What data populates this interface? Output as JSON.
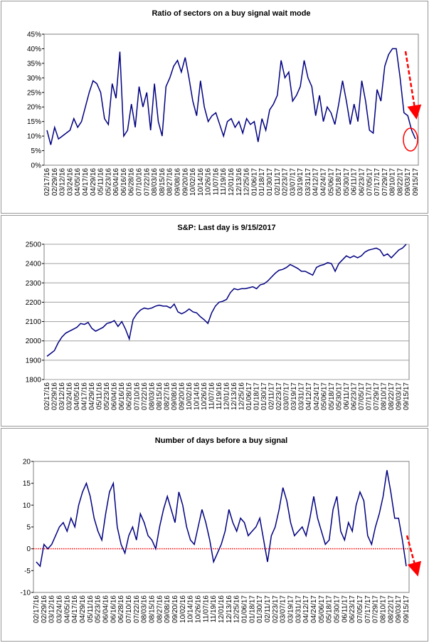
{
  "chart_data": [
    {
      "type": "line",
      "title": "Ratio of sectors on a buy signal wait mode",
      "color": "#000080",
      "grid": false,
      "categories": [
        "02/17/16",
        null,
        "02/29/16",
        null,
        "03/12/16",
        null,
        "03/24/16",
        null,
        "04/05/16",
        null,
        "04/17/16",
        null,
        "04/29/16",
        null,
        "05/11/16",
        null,
        "05/23/16",
        null,
        "06/04/16",
        null,
        "06/16/16",
        null,
        "06/28/16",
        null,
        "07/10/16",
        null,
        "07/22/16",
        null,
        "08/03/16",
        null,
        "08/15/16",
        null,
        "08/27/16",
        null,
        "09/08/16",
        null,
        "09/20/16",
        null,
        "10/02/16",
        null,
        "10/14/16",
        null,
        "10/26/16",
        null,
        "11/07/16",
        null,
        "11/19/16",
        null,
        "12/01/16",
        null,
        "12/13/16",
        null,
        "12/25/16",
        null,
        "01/06/17",
        null,
        "01/18/17",
        null,
        "01/30/17",
        null,
        "02/11/17",
        null,
        "02/23/17",
        null,
        "03/07/17",
        null,
        "03/19/17",
        null,
        "03/31/17",
        null,
        "04/12/17",
        null,
        "04/24/17",
        null,
        "05/06/17",
        null,
        "05/18/17",
        null,
        "05/30/17",
        null,
        "06/11/17",
        null,
        "06/23/17",
        null,
        "07/05/17",
        null,
        "07/17/17",
        null,
        "07/29/17",
        null,
        "08/10/17",
        null,
        "08/22/17",
        null,
        "09/03/17",
        null,
        "09/15/17"
      ],
      "values": [
        12,
        7,
        13,
        9,
        10,
        11,
        12,
        16,
        13,
        15,
        20,
        25,
        29,
        28,
        25,
        16,
        14,
        28,
        23,
        39,
        10,
        12,
        21,
        13,
        27,
        20,
        25,
        12,
        28,
        15,
        10,
        27,
        30,
        34,
        36,
        32,
        37,
        30,
        22,
        17,
        29,
        20,
        15,
        17,
        18,
        14,
        10,
        15,
        16,
        13,
        15,
        11,
        16,
        14,
        15,
        8,
        16,
        12,
        19,
        21,
        24,
        36,
        30,
        32,
        22,
        24,
        27,
        36,
        30,
        27,
        17,
        24,
        15,
        20,
        18,
        14,
        21,
        29,
        22,
        14,
        21,
        15,
        29,
        22,
        12,
        11,
        26,
        22,
        34,
        38,
        40,
        40,
        30,
        18,
        17,
        12,
        9
      ],
      "ylim": [
        0,
        45
      ],
      "yticks": [
        {
          "value": 0,
          "label": "0%"
        },
        {
          "value": 5,
          "label": "5%"
        },
        {
          "value": 10,
          "label": "10%"
        },
        {
          "value": 15,
          "label": "15%"
        },
        {
          "value": 20,
          "label": "20%"
        },
        {
          "value": 25,
          "label": "25%"
        },
        {
          "value": 30,
          "label": "30%"
        },
        {
          "value": 35,
          "label": "35%"
        },
        {
          "value": 40,
          "label": "40%"
        },
        {
          "value": 45,
          "label": "45%"
        }
      ]
    },
    {
      "type": "line",
      "title": "S&P: Last day is 9/15/2017",
      "color": "#000080",
      "grid": true,
      "categories": [
        "02/17/16",
        null,
        "02/29/16",
        null,
        "03/12/16",
        null,
        "03/24/16",
        null,
        "04/05/16",
        null,
        "04/17/16",
        null,
        "04/29/16",
        null,
        "05/11/16",
        null,
        "05/23/16",
        null,
        "06/04/16",
        null,
        "06/16/16",
        null,
        "06/28/16",
        null,
        "07/10/16",
        null,
        "07/22/16",
        null,
        "08/03/16",
        null,
        "08/15/16",
        null,
        "08/27/16",
        null,
        "09/08/16",
        null,
        "09/20/16",
        null,
        "10/02/16",
        null,
        "10/14/16",
        null,
        "10/26/16",
        null,
        "11/07/16",
        null,
        "11/19/16",
        null,
        "12/01/16",
        null,
        "12/13/16",
        null,
        "12/25/16",
        null,
        "01/06/17",
        null,
        "01/18/17",
        null,
        "01/30/17",
        null,
        "02/11/17",
        null,
        "02/23/17",
        null,
        "03/07/17",
        null,
        "03/19/17",
        null,
        "03/31/17",
        null,
        "04/12/17",
        null,
        "04/24/17",
        null,
        "05/06/17",
        null,
        "05/18/17",
        null,
        "05/30/17",
        null,
        "06/11/17",
        null,
        "06/23/17",
        null,
        "07/05/17",
        null,
        "07/17/17",
        null,
        "07/29/17",
        null,
        "08/10/17",
        null,
        "08/22/17",
        null,
        "09/03/17",
        null,
        "09/15/17"
      ],
      "values": [
        1920,
        1935,
        1950,
        1990,
        2020,
        2040,
        2050,
        2060,
        2070,
        2090,
        2085,
        2095,
        2065,
        2050,
        2060,
        2070,
        2090,
        2095,
        2105,
        2075,
        2100,
        2060,
        2010,
        2110,
        2140,
        2160,
        2170,
        2165,
        2170,
        2180,
        2185,
        2180,
        2180,
        2170,
        2190,
        2150,
        2140,
        2150,
        2165,
        2150,
        2145,
        2125,
        2110,
        2090,
        2145,
        2180,
        2200,
        2205,
        2215,
        2250,
        2270,
        2265,
        2270,
        2270,
        2275,
        2280,
        2270,
        2290,
        2295,
        2310,
        2330,
        2350,
        2365,
        2370,
        2380,
        2395,
        2385,
        2375,
        2360,
        2360,
        2350,
        2340,
        2380,
        2390,
        2395,
        2405,
        2400,
        2360,
        2400,
        2420,
        2440,
        2430,
        2440,
        2430,
        2440,
        2460,
        2470,
        2475,
        2480,
        2470,
        2440,
        2450,
        2430,
        2450,
        2470,
        2480,
        2500
      ],
      "ylim": [
        1800,
        2500
      ],
      "yticks": [
        1800,
        1900,
        2000,
        2100,
        2200,
        2300,
        2400,
        2500
      ]
    },
    {
      "type": "line",
      "title": "Number of days before a buy signal",
      "color": "#000080",
      "grid": false,
      "reference_line": {
        "value": 0,
        "color": "#ff0000"
      },
      "categories": [
        "02/17/16",
        null,
        "02/29/16",
        null,
        "03/12/16",
        null,
        "03/24/16",
        null,
        "04/05/16",
        null,
        "04/17/16",
        null,
        "04/29/16",
        null,
        "05/11/16",
        null,
        "05/23/16",
        null,
        "06/04/16",
        null,
        "06/16/16",
        null,
        "06/28/16",
        null,
        "07/10/16",
        null,
        "07/22/16",
        null,
        "08/03/16",
        null,
        "08/15/16",
        null,
        "08/27/16",
        null,
        "09/08/16",
        null,
        "09/20/16",
        null,
        "10/02/16",
        null,
        "10/14/16",
        null,
        "10/26/16",
        null,
        "11/07/16",
        null,
        "11/19/16",
        null,
        "12/01/16",
        null,
        "12/13/16",
        null,
        "12/25/16",
        null,
        "01/06/17",
        null,
        "01/18/17",
        null,
        "01/30/17",
        null,
        "02/11/17",
        null,
        "02/23/17",
        null,
        "03/07/17",
        null,
        "03/19/17",
        null,
        "03/31/17",
        null,
        "04/12/17",
        null,
        "04/24/17",
        null,
        "05/06/17",
        null,
        "05/18/17",
        null,
        "05/30/17",
        null,
        "06/11/17",
        null,
        "06/23/17",
        null,
        "07/05/17",
        null,
        "07/17/17",
        null,
        "07/29/17",
        null,
        "08/10/17",
        null,
        "08/22/17",
        null,
        "09/03/17",
        null,
        "09/15/17"
      ],
      "values": [
        -3,
        -4,
        1,
        0,
        1,
        3,
        5,
        6,
        4,
        7,
        5,
        10,
        13,
        15,
        12,
        7,
        4,
        2,
        8,
        13,
        15,
        5,
        1,
        -1,
        3,
        5,
        2,
        8,
        6,
        3,
        2,
        0,
        5,
        9,
        12,
        9,
        6,
        13,
        10,
        5,
        2,
        1,
        5,
        9,
        6,
        2,
        -3,
        -1,
        1,
        4,
        9,
        6,
        4,
        7,
        6,
        3,
        4,
        5,
        7,
        2,
        -3,
        3,
        5,
        9,
        14,
        11,
        6,
        3,
        4,
        5,
        3,
        7,
        12,
        7,
        4,
        1,
        2,
        9,
        12,
        4,
        2,
        6,
        4,
        10,
        13,
        11,
        3,
        1,
        5,
        8,
        12,
        18,
        13,
        7,
        7,
        2,
        -4
      ],
      "ylim": [
        -10,
        20
      ],
      "yticks": [
        -10,
        -5,
        0,
        5,
        10,
        15,
        20
      ]
    }
  ]
}
